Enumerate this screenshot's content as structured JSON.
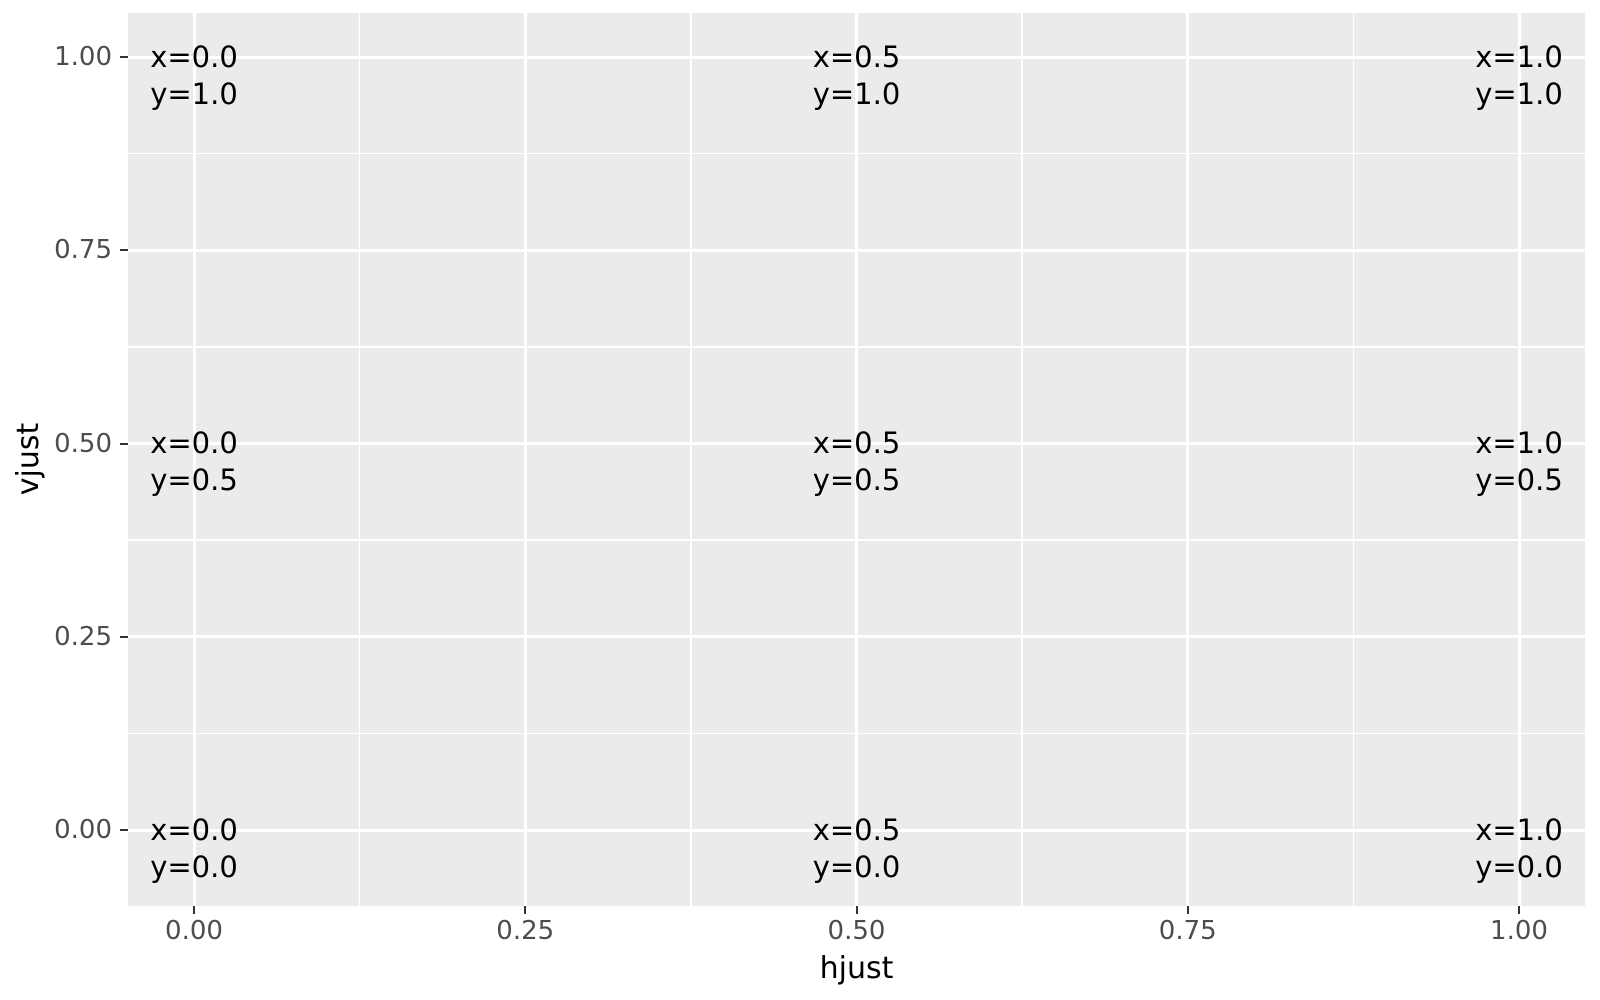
{
  "figure": {
    "background_color": "#FFFFFF",
    "panel_background_color": "#EBEBEB",
    "gridline_color": "#FFFFFF",
    "tick_mark_color": "#333333",
    "tick_label_color": "#4D4D4D",
    "text_color": "#000000"
  },
  "chart_data": {
    "type": "scatter",
    "title": "",
    "xlabel": "hjust",
    "ylabel": "vjust",
    "xlim": [
      -0.05,
      1.05
    ],
    "ylim": [
      -0.1,
      1.06
    ],
    "grid": "major and minor gridlines on, white on gray panel",
    "legend": "none",
    "x_ticks": {
      "values": [
        0,
        0.25,
        0.5,
        0.75,
        1
      ],
      "labels": [
        "0.00",
        "0.25",
        "0.50",
        "0.75",
        "1.00"
      ]
    },
    "y_ticks": {
      "values": [
        0,
        0.25,
        0.5,
        0.75,
        1
      ],
      "labels": [
        "0.00",
        "0.25",
        "0.50",
        "0.75",
        "1.00"
      ]
    },
    "x_minor_ticks": [
      0.125,
      0.375,
      0.625,
      0.875
    ],
    "y_minor_ticks": [
      0.125,
      0.375,
      0.625,
      0.875
    ],
    "points": [
      {
        "x": 0,
        "y": 1,
        "label": "x=0.0\ny=1.0"
      },
      {
        "x": 0.5,
        "y": 1,
        "label": "x=0.5\ny=1.0"
      },
      {
        "x": 1,
        "y": 1,
        "label": "x=1.0\ny=1.0"
      },
      {
        "x": 0,
        "y": 0.5,
        "label": "x=0.0\ny=0.5"
      },
      {
        "x": 0.5,
        "y": 0.5,
        "label": "x=0.5\ny=0.5"
      },
      {
        "x": 1,
        "y": 0.5,
        "label": "x=1.0\ny=0.5"
      },
      {
        "x": 0,
        "y": 0,
        "label": "x=0.0\ny=0.0"
      },
      {
        "x": 0.5,
        "y": 0,
        "label": "x=0.5\ny=0.0"
      },
      {
        "x": 1,
        "y": 0,
        "label": "x=1.0\ny=0.0"
      }
    ]
  }
}
